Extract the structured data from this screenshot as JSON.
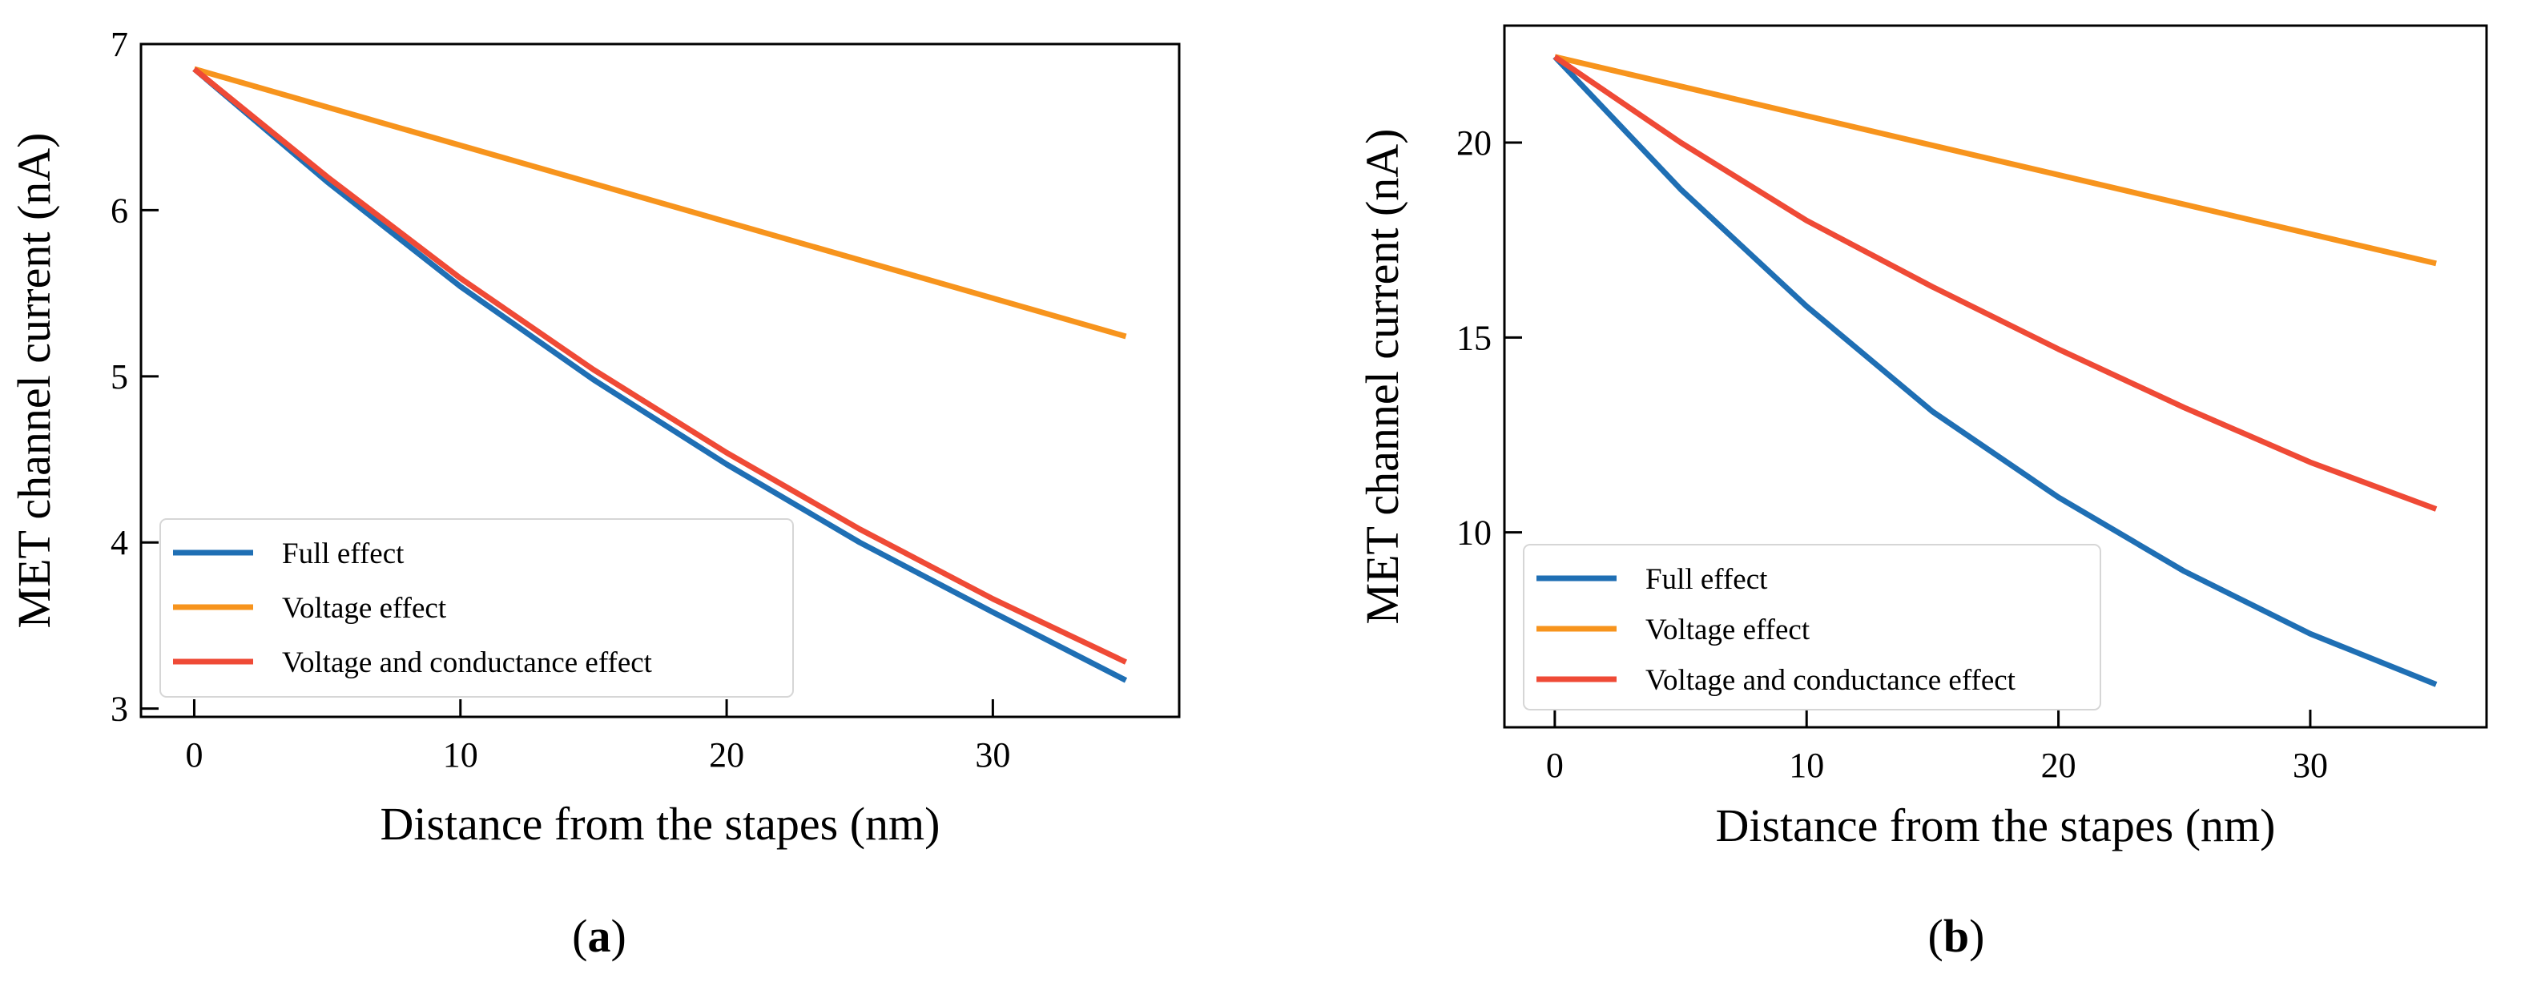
{
  "chart_data": [
    {
      "type": "line",
      "panel_label": "a",
      "xlabel": "Distance from the stapes (nm)",
      "ylabel": "MET channel current (nA)",
      "xlim": [
        -2,
        37
      ],
      "ylim": [
        2.95,
        7.0
      ],
      "xticks": [
        0,
        10,
        20,
        30
      ],
      "yticks": [
        3,
        4,
        5,
        6,
        7
      ],
      "legend_position": "lower-left",
      "grid": false,
      "series": [
        {
          "name": "Full effect",
          "color": "#1f6fb4",
          "x": [
            0,
            5,
            10,
            15,
            20,
            25,
            30,
            35
          ],
          "y": [
            6.85,
            6.17,
            5.54,
            4.98,
            4.47,
            4.0,
            3.58,
            3.17
          ]
        },
        {
          "name": "Voltage effect",
          "color": "#f7941d",
          "x": [
            0,
            35
          ],
          "y": [
            6.85,
            5.24
          ]
        },
        {
          "name": "Voltage and conductance effect",
          "color": "#ef4a36",
          "x": [
            0,
            5,
            10,
            15,
            20,
            25,
            30,
            35
          ],
          "y": [
            6.85,
            6.2,
            5.59,
            5.04,
            4.54,
            4.08,
            3.66,
            3.28
          ]
        }
      ]
    },
    {
      "type": "line",
      "panel_label": "b",
      "xlabel": "Distance from the stapes (nm)",
      "ylabel": "MET channel current (nA)",
      "xlim": [
        -2,
        37
      ],
      "ylim": [
        5.0,
        23.0
      ],
      "xticks": [
        0,
        10,
        20,
        30
      ],
      "yticks": [
        10,
        15,
        20
      ],
      "legend_position": "lower-left",
      "grid": false,
      "series": [
        {
          "name": "Full effect",
          "color": "#1f6fb4",
          "x": [
            0,
            5,
            10,
            15,
            20,
            25,
            30,
            35
          ],
          "y": [
            22.2,
            18.8,
            15.8,
            13.1,
            10.9,
            9.0,
            7.4,
            6.1
          ]
        },
        {
          "name": "Voltage effect",
          "color": "#f7941d",
          "x": [
            0,
            35
          ],
          "y": [
            22.2,
            16.9
          ]
        },
        {
          "name": "Voltage and conductance effect",
          "color": "#ef4a36",
          "x": [
            0,
            5,
            10,
            15,
            20,
            25,
            30,
            35
          ],
          "y": [
            22.2,
            20.0,
            18.0,
            16.3,
            14.7,
            13.2,
            11.8,
            10.6
          ]
        }
      ]
    }
  ]
}
